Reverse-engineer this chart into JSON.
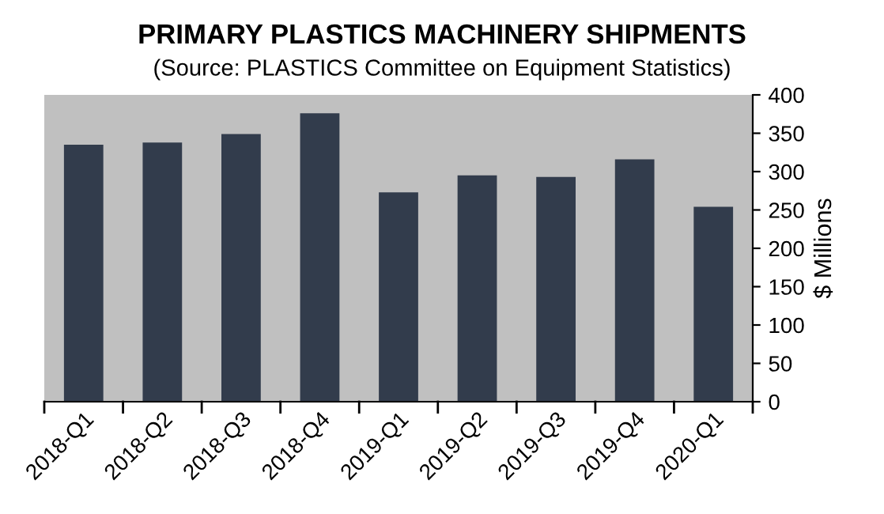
{
  "chart_data": {
    "type": "bar",
    "title": "PRIMARY PLASTICS MACHINERY SHIPMENTS",
    "subtitle": "(Source: PLASTICS Committee on Equipment Statistics)",
    "ylabel": "$ Millions",
    "categories": [
      "2018-Q1",
      "2018-Q2",
      "2018-Q3",
      "2018-Q4",
      "2019-Q1",
      "2019-Q2",
      "2019-Q3",
      "2019-Q4",
      "2020-Q1"
    ],
    "values": [
      335,
      338,
      349,
      376,
      273,
      295,
      293,
      316,
      254
    ],
    "color": "#323c4c",
    "ylim": [
      0,
      400
    ],
    "yticks": [
      0,
      50,
      100,
      150,
      200,
      250,
      300,
      350,
      400
    ],
    "grid": false,
    "legend": false
  }
}
